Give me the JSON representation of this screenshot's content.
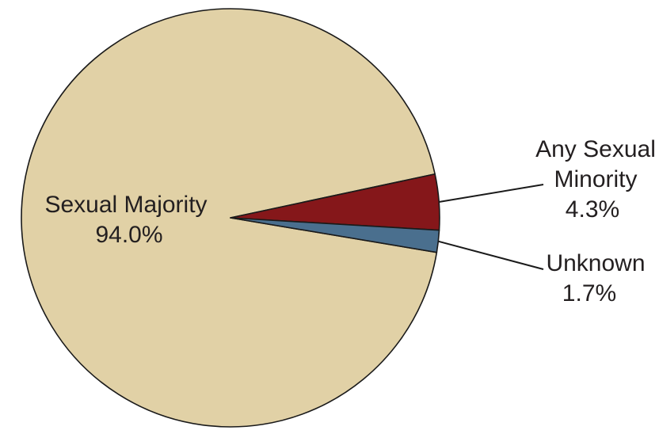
{
  "chart_data": {
    "type": "pie",
    "title": "",
    "slices": [
      {
        "label": "Sexual Majority",
        "label_lines": [
          "Sexual Majority"
        ],
        "value": 94.0,
        "value_label": "94.0%",
        "color": "#e1d1a6"
      },
      {
        "label": "Any Sexual Minority",
        "label_lines": [
          "Any Sexual",
          "Minority"
        ],
        "value": 4.3,
        "value_label": "4.3%",
        "color": "#85171a"
      },
      {
        "label": "Unknown",
        "label_lines": [
          "Unknown"
        ],
        "value": 1.7,
        "value_label": "1.7%",
        "color": "#4a6f8e"
      }
    ],
    "legend": "none"
  }
}
